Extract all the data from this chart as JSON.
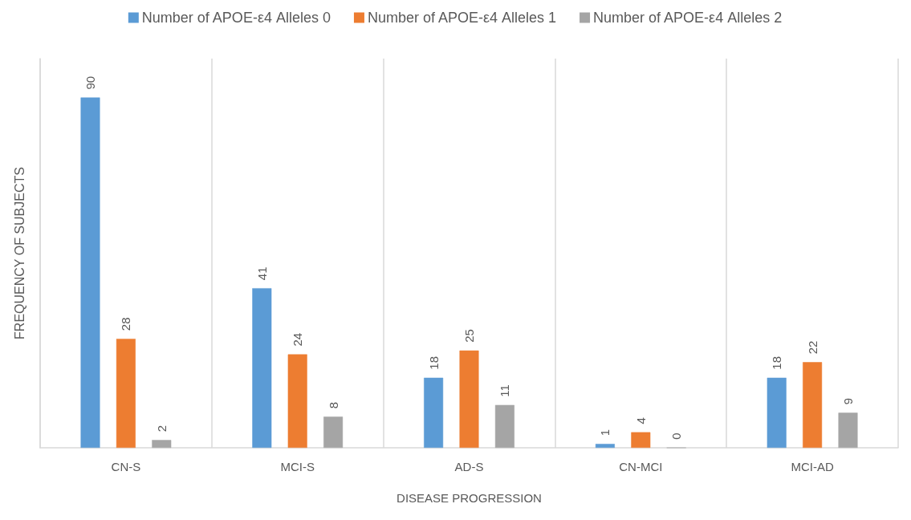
{
  "chart_data": {
    "type": "bar",
    "xlabel": "DISEASE PROGRESSION",
    "ylabel": "FREQUENCY OF SUBJECTS",
    "categories": [
      "CN-S",
      "MCI-S",
      "AD-S",
      "CN-MCI",
      "MCI-AD"
    ],
    "series": [
      {
        "name": "Number of APOE-ε4 Alleles 0",
        "color": "#5b9bd5",
        "values": [
          90,
          41,
          18,
          1,
          18
        ]
      },
      {
        "name": "Number of APOE-ε4 Alleles 1",
        "color": "#ed7d31",
        "values": [
          28,
          24,
          25,
          4,
          22
        ]
      },
      {
        "name": "Number of APOE-ε4 Alleles 2",
        "color": "#a5a5a5",
        "values": [
          2,
          8,
          11,
          0,
          9
        ]
      }
    ],
    "data_labels": true,
    "grid": "x",
    "legend": "top",
    "tick_labels": "x"
  }
}
